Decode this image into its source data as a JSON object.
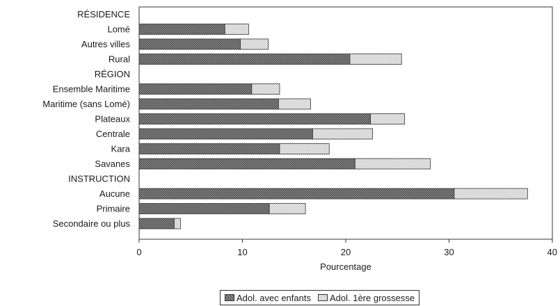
{
  "chart_data": {
    "type": "bar",
    "orientation": "horizontal",
    "stacked": true,
    "xlabel": "Pourcentage",
    "xlim": [
      0,
      40
    ],
    "xticks": [
      0,
      10,
      20,
      30,
      40
    ],
    "grid": false,
    "legend_position": "bottom",
    "rows": [
      {
        "label": "RÉSIDENCE",
        "heading": true
      },
      {
        "label": "Lomé",
        "values": [
          8.3,
          2.3
        ]
      },
      {
        "label": "Autres villes",
        "values": [
          9.8,
          2.7
        ]
      },
      {
        "label": "Rural",
        "values": [
          20.4,
          5.0
        ]
      },
      {
        "label": "RÉGION",
        "heading": true
      },
      {
        "label": "Ensemble Maritime",
        "values": [
          10.9,
          2.7
        ]
      },
      {
        "label": "Maritime (sans Lomé)",
        "values": [
          13.5,
          3.1
        ]
      },
      {
        "label": "Plateaux",
        "values": [
          22.4,
          3.3
        ]
      },
      {
        "label": "Centrale",
        "values": [
          16.8,
          5.8
        ]
      },
      {
        "label": "Kara",
        "values": [
          13.6,
          4.8
        ]
      },
      {
        "label": "Savanes",
        "values": [
          20.9,
          7.3
        ]
      },
      {
        "label": "INSTRUCTION",
        "heading": true
      },
      {
        "label": "Aucune",
        "values": [
          30.5,
          7.1
        ]
      },
      {
        "label": "Primaire",
        "values": [
          12.6,
          3.5
        ]
      },
      {
        "label": "Secondaire ou plus",
        "values": [
          3.4,
          0.6
        ]
      }
    ],
    "series": [
      {
        "name": "Adol. avec enfants",
        "color": "#6e6e6e"
      },
      {
        "name": "Adol. 1ère grossesse",
        "color": "#dcdcdc"
      }
    ]
  }
}
